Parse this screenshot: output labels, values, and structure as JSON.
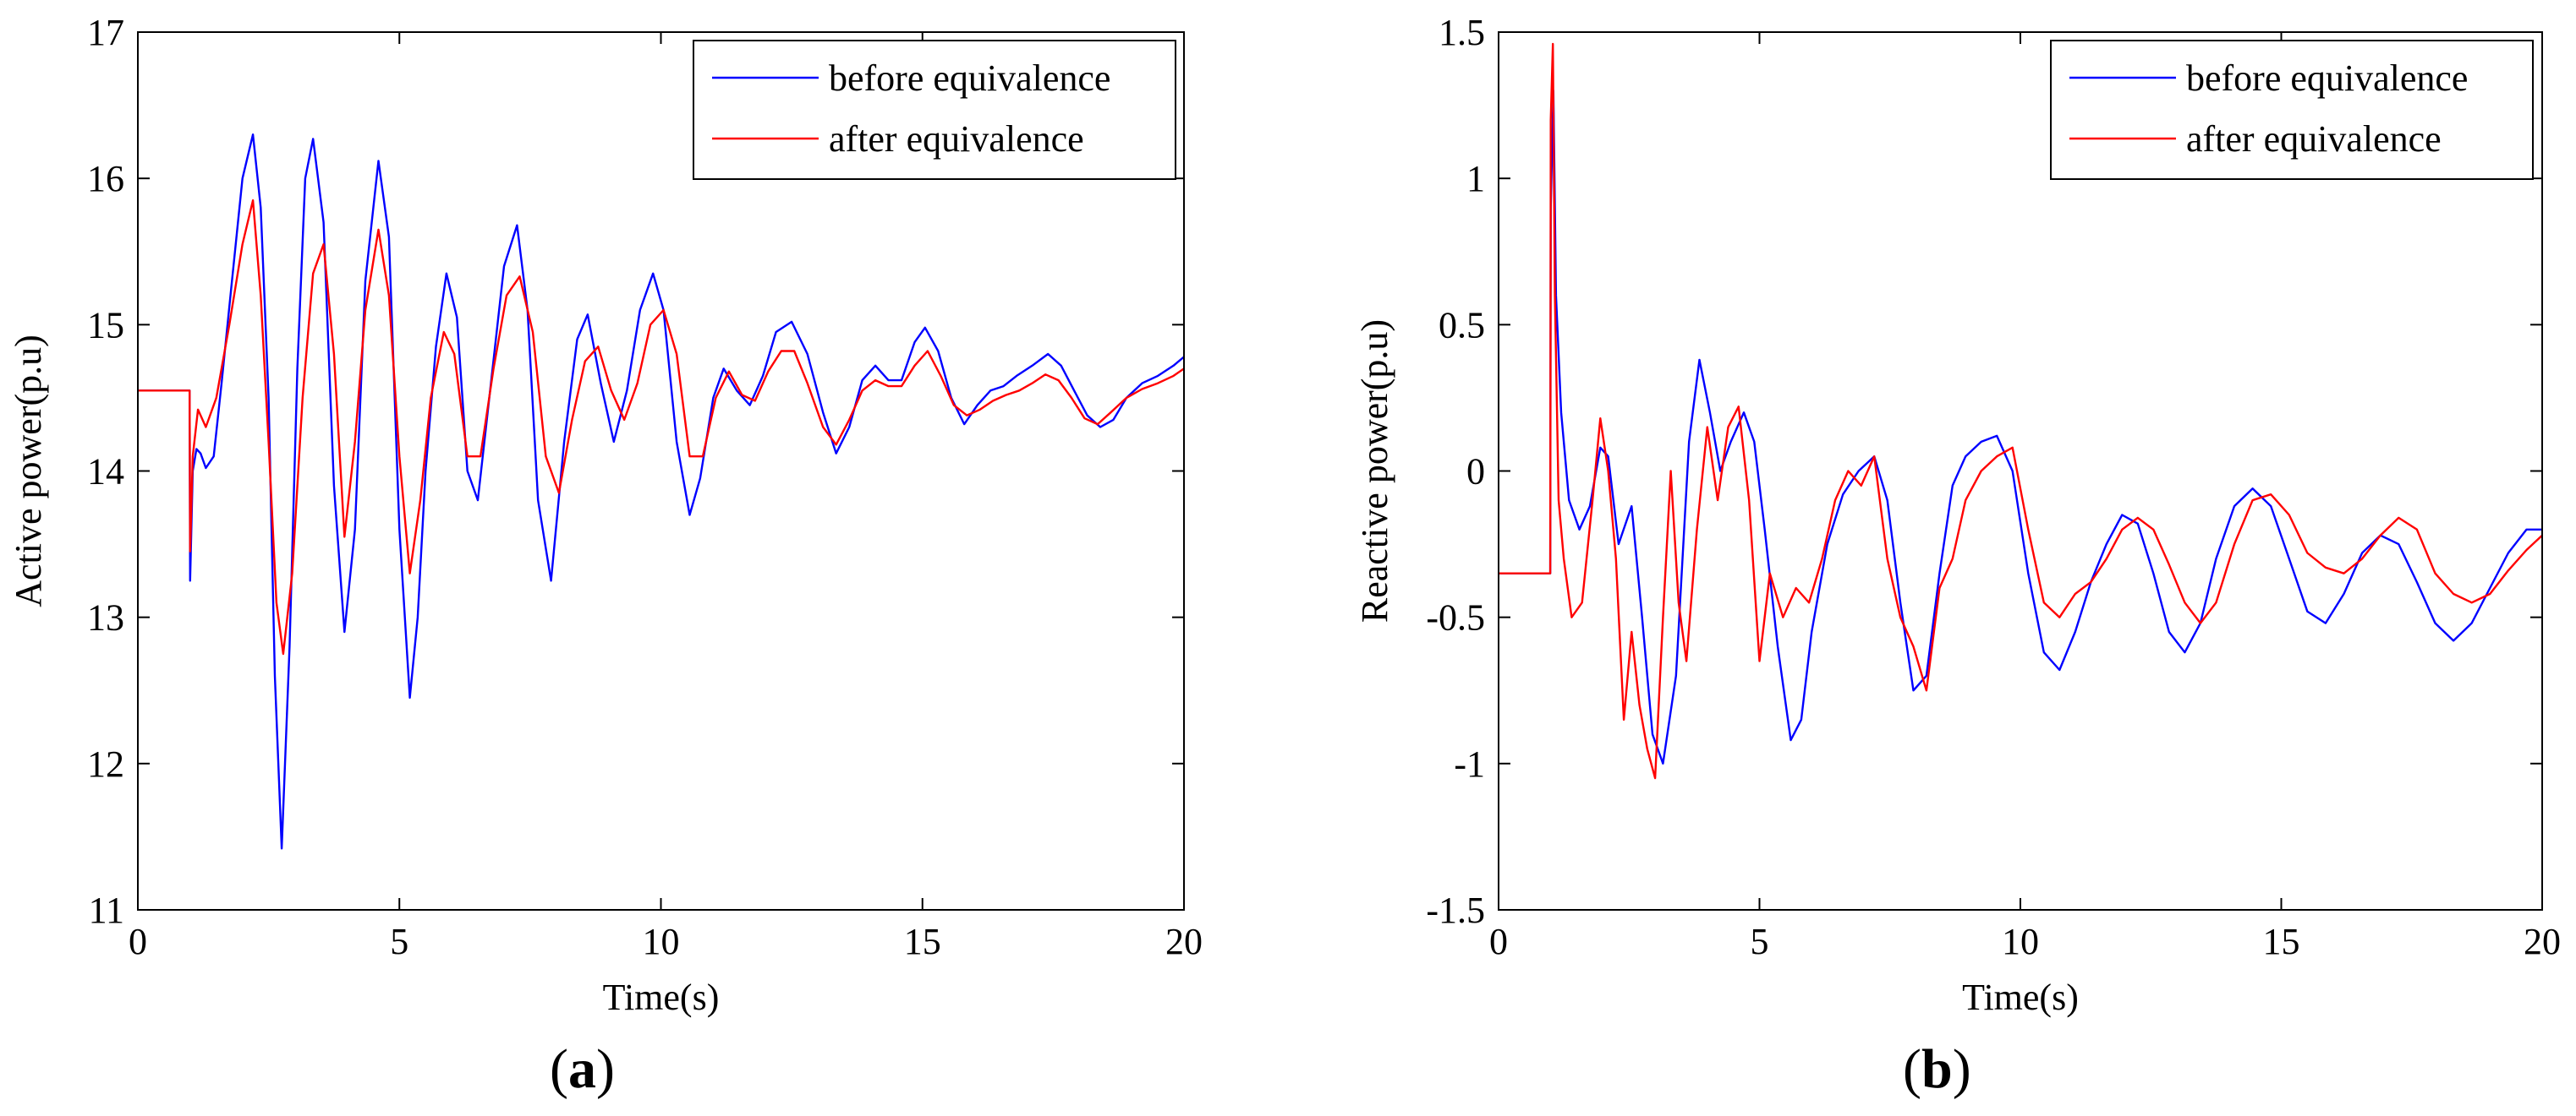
{
  "colors": {
    "before": "#0000ff",
    "after": "#ff0000",
    "axis": "#000000"
  },
  "captions": {
    "a": {
      "open": "(",
      "letter": "a",
      "close": ")"
    },
    "b": {
      "open": "(",
      "letter": "b",
      "close": ")"
    }
  },
  "chart_data": [
    {
      "type": "line",
      "xlabel": "Time(s)",
      "ylabel": "Active power(p.u)",
      "xlim": [
        0,
        20
      ],
      "ylim": [
        11,
        17
      ],
      "xticks": [
        0,
        5,
        10,
        15,
        20
      ],
      "yticks": [
        11,
        12,
        13,
        14,
        15,
        16,
        17
      ],
      "grid": false,
      "legend_position": "top-right",
      "series": [
        {
          "name": "before equivalence",
          "color": "#0000ff",
          "x": [
            0,
            0.99,
            1.0,
            1.05,
            1.12,
            1.2,
            1.3,
            1.45,
            1.6,
            1.8,
            2.0,
            2.2,
            2.35,
            2.5,
            2.62,
            2.75,
            2.9,
            3.05,
            3.2,
            3.35,
            3.55,
            3.75,
            3.95,
            4.15,
            4.35,
            4.6,
            4.8,
            5.0,
            5.2,
            5.35,
            5.5,
            5.7,
            5.9,
            6.1,
            6.3,
            6.5,
            6.75,
            7.0,
            7.25,
            7.45,
            7.65,
            7.9,
            8.15,
            8.4,
            8.6,
            8.85,
            9.1,
            9.35,
            9.6,
            9.85,
            10.05,
            10.3,
            10.55,
            10.75,
            11.0,
            11.2,
            11.45,
            11.7,
            11.95,
            12.2,
            12.5,
            12.8,
            13.1,
            13.35,
            13.6,
            13.85,
            14.1,
            14.35,
            14.6,
            14.85,
            15.05,
            15.3,
            15.55,
            15.8,
            16.05,
            16.3,
            16.55,
            16.8,
            17.1,
            17.4,
            17.65,
            17.9,
            18.15,
            18.4,
            18.65,
            18.9,
            19.2,
            19.5,
            19.8,
            20.0
          ],
          "y": [
            14.55,
            14.55,
            13.25,
            14.0,
            14.15,
            14.12,
            14.02,
            14.1,
            14.6,
            15.3,
            16.0,
            16.3,
            15.8,
            14.5,
            12.6,
            11.42,
            12.8,
            14.7,
            16.0,
            16.27,
            15.7,
            13.9,
            12.9,
            13.6,
            15.3,
            16.12,
            15.6,
            13.6,
            12.45,
            13.0,
            14.0,
            14.85,
            15.35,
            15.05,
            14.0,
            13.8,
            14.6,
            15.4,
            15.68,
            15.1,
            13.8,
            13.25,
            14.2,
            14.9,
            15.07,
            14.6,
            14.2,
            14.55,
            15.1,
            15.35,
            15.1,
            14.2,
            13.7,
            13.95,
            14.5,
            14.7,
            14.55,
            14.45,
            14.65,
            14.95,
            15.02,
            14.8,
            14.4,
            14.12,
            14.3,
            14.62,
            14.72,
            14.62,
            14.62,
            14.88,
            14.98,
            14.82,
            14.5,
            14.32,
            14.45,
            14.55,
            14.58,
            14.65,
            14.72,
            14.8,
            14.72,
            14.55,
            14.38,
            14.3,
            14.35,
            14.5,
            14.6,
            14.65,
            14.72,
            14.78
          ]
        },
        {
          "name": "after equivalence",
          "color": "#ff0000",
          "x": [
            0,
            0.99,
            1.0,
            1.05,
            1.15,
            1.3,
            1.5,
            1.75,
            2.0,
            2.2,
            2.35,
            2.5,
            2.65,
            2.78,
            2.95,
            3.15,
            3.35,
            3.55,
            3.75,
            3.95,
            4.15,
            4.35,
            4.6,
            4.8,
            5.0,
            5.2,
            5.4,
            5.6,
            5.85,
            6.05,
            6.3,
            6.55,
            6.8,
            7.05,
            7.3,
            7.55,
            7.8,
            8.05,
            8.3,
            8.55,
            8.8,
            9.05,
            9.3,
            9.55,
            9.8,
            10.05,
            10.3,
            10.55,
            10.8,
            11.05,
            11.3,
            11.55,
            11.8,
            12.05,
            12.3,
            12.55,
            12.8,
            13.1,
            13.35,
            13.6,
            13.85,
            14.1,
            14.35,
            14.6,
            14.85,
            15.1,
            15.35,
            15.6,
            15.85,
            16.1,
            16.35,
            16.6,
            16.85,
            17.1,
            17.35,
            17.6,
            17.85,
            18.1,
            18.35,
            18.6,
            18.9,
            19.2,
            19.5,
            19.8,
            20.0
          ],
          "y": [
            14.55,
            14.55,
            13.45,
            14.1,
            14.42,
            14.3,
            14.5,
            15.0,
            15.55,
            15.85,
            15.2,
            14.2,
            13.1,
            12.75,
            13.3,
            14.5,
            15.35,
            15.55,
            14.8,
            13.55,
            14.2,
            15.1,
            15.65,
            15.2,
            14.1,
            13.3,
            13.8,
            14.5,
            14.95,
            14.8,
            14.1,
            14.1,
            14.7,
            15.2,
            15.33,
            14.95,
            14.1,
            13.85,
            14.35,
            14.75,
            14.85,
            14.55,
            14.35,
            14.6,
            15.0,
            15.1,
            14.8,
            14.1,
            14.1,
            14.5,
            14.68,
            14.52,
            14.48,
            14.68,
            14.82,
            14.82,
            14.6,
            14.3,
            14.18,
            14.35,
            14.55,
            14.62,
            14.58,
            14.58,
            14.72,
            14.82,
            14.65,
            14.45,
            14.38,
            14.42,
            14.48,
            14.52,
            14.55,
            14.6,
            14.66,
            14.62,
            14.5,
            14.36,
            14.32,
            14.4,
            14.5,
            14.56,
            14.6,
            14.65,
            14.7
          ]
        }
      ]
    },
    {
      "type": "line",
      "xlabel": "Time(s)",
      "ylabel": "Reactive power(p.u)",
      "xlim": [
        0,
        20
      ],
      "ylim": [
        -1.5,
        1.5
      ],
      "xticks": [
        0,
        5,
        10,
        15,
        20
      ],
      "yticks": [
        -1.5,
        -1,
        -0.5,
        0,
        0.5,
        1,
        1.5
      ],
      "ytick_labels": [
        "-1.5",
        "-1",
        "-0.5",
        "0",
        "0.5",
        "1",
        "1.5"
      ],
      "grid": false,
      "legend_position": "top-right",
      "series": [
        {
          "name": "before equivalence",
          "color": "#0000ff",
          "x": [
            0,
            0.99,
            1.0,
            1.05,
            1.1,
            1.2,
            1.35,
            1.55,
            1.75,
            1.95,
            2.1,
            2.3,
            2.55,
            2.75,
            2.95,
            3.15,
            3.4,
            3.65,
            3.85,
            4.05,
            4.25,
            4.45,
            4.7,
            4.9,
            5.1,
            5.35,
            5.6,
            5.8,
            6.0,
            6.3,
            6.6,
            6.9,
            7.2,
            7.45,
            7.7,
            7.95,
            8.2,
            8.45,
            8.7,
            8.95,
            9.25,
            9.55,
            9.85,
            10.15,
            10.45,
            10.75,
            11.05,
            11.35,
            11.65,
            11.95,
            12.25,
            12.55,
            12.85,
            13.15,
            13.45,
            13.75,
            14.1,
            14.45,
            14.8,
            15.15,
            15.5,
            15.85,
            16.2,
            16.55,
            16.9,
            17.25,
            17.6,
            17.95,
            18.3,
            18.65,
            19.0,
            19.35,
            19.7,
            20.0
          ],
          "y": [
            -0.35,
            -0.35,
            0.9,
            1.3,
            0.6,
            0.2,
            -0.1,
            -0.2,
            -0.12,
            0.08,
            0.05,
            -0.25,
            -0.12,
            -0.5,
            -0.9,
            -1.0,
            -0.7,
            0.1,
            0.38,
            0.2,
            0.0,
            0.1,
            0.2,
            0.1,
            -0.2,
            -0.6,
            -0.92,
            -0.85,
            -0.55,
            -0.25,
            -0.08,
            0.0,
            0.05,
            -0.1,
            -0.45,
            -0.75,
            -0.7,
            -0.35,
            -0.05,
            0.05,
            0.1,
            0.12,
            0.0,
            -0.35,
            -0.62,
            -0.68,
            -0.55,
            -0.38,
            -0.25,
            -0.15,
            -0.18,
            -0.35,
            -0.55,
            -0.62,
            -0.52,
            -0.3,
            -0.12,
            -0.06,
            -0.12,
            -0.3,
            -0.48,
            -0.52,
            -0.42,
            -0.28,
            -0.22,
            -0.25,
            -0.38,
            -0.52,
            -0.58,
            -0.52,
            -0.4,
            -0.28,
            -0.2,
            -0.2
          ]
        },
        {
          "name": "after equivalence",
          "color": "#ff0000",
          "x": [
            0,
            0.99,
            1.0,
            1.04,
            1.08,
            1.15,
            1.25,
            1.4,
            1.6,
            1.8,
            1.95,
            2.1,
            2.25,
            2.4,
            2.55,
            2.7,
            2.85,
            3.0,
            3.15,
            3.3,
            3.45,
            3.6,
            3.8,
            4.0,
            4.2,
            4.4,
            4.6,
            4.8,
            5.0,
            5.2,
            5.45,
            5.7,
            5.95,
            6.2,
            6.45,
            6.7,
            6.95,
            7.2,
            7.45,
            7.7,
            7.95,
            8.2,
            8.45,
            8.7,
            8.95,
            9.25,
            9.55,
            9.85,
            10.15,
            10.45,
            10.75,
            11.05,
            11.35,
            11.65,
            11.95,
            12.25,
            12.55,
            12.85,
            13.15,
            13.45,
            13.75,
            14.1,
            14.45,
            14.8,
            15.15,
            15.5,
            15.85,
            16.2,
            16.55,
            16.9,
            17.25,
            17.6,
            17.95,
            18.3,
            18.65,
            19.0,
            19.35,
            19.7,
            20.0
          ],
          "y": [
            -0.35,
            -0.35,
            1.2,
            1.46,
            0.6,
            -0.1,
            -0.3,
            -0.5,
            -0.45,
            -0.1,
            0.18,
            0.0,
            -0.3,
            -0.85,
            -0.55,
            -0.8,
            -0.95,
            -1.05,
            -0.5,
            0.0,
            -0.45,
            -0.65,
            -0.2,
            0.15,
            -0.1,
            0.15,
            0.22,
            -0.1,
            -0.65,
            -0.35,
            -0.5,
            -0.4,
            -0.45,
            -0.3,
            -0.1,
            0.0,
            -0.05,
            0.05,
            -0.3,
            -0.5,
            -0.6,
            -0.75,
            -0.4,
            -0.3,
            -0.1,
            0.0,
            0.05,
            0.08,
            -0.2,
            -0.45,
            -0.5,
            -0.42,
            -0.38,
            -0.3,
            -0.2,
            -0.16,
            -0.2,
            -0.32,
            -0.45,
            -0.52,
            -0.45,
            -0.25,
            -0.1,
            -0.08,
            -0.15,
            -0.28,
            -0.33,
            -0.35,
            -0.3,
            -0.22,
            -0.16,
            -0.2,
            -0.35,
            -0.42,
            -0.45,
            -0.42,
            -0.34,
            -0.27,
            -0.22
          ]
        }
      ]
    }
  ]
}
